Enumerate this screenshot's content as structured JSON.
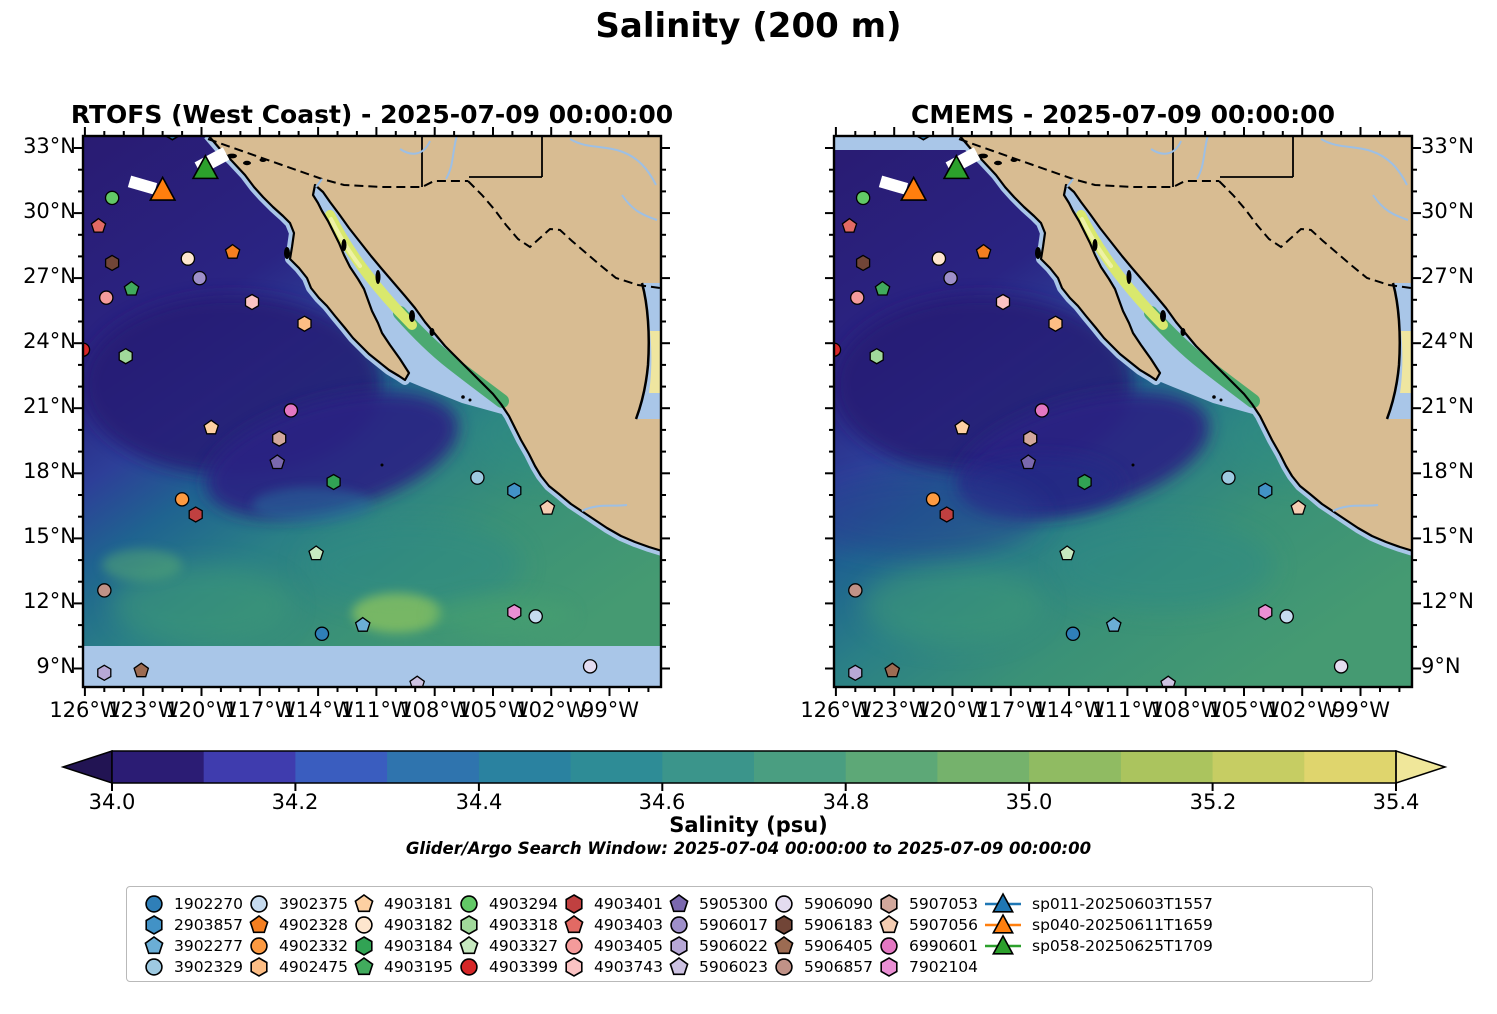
{
  "figure": {
    "title": "Salinity (200 m)",
    "subtitle": "Glider/Argo Search Window: 2025-07-04 00:00:00 to 2025-07-09 00:00:00"
  },
  "maps": [
    {
      "id": "rtofs",
      "title": "RTOFS (West Coast) - 2025-07-09 00:00:00",
      "lat_label_side": "left",
      "no_data_band": "bottom"
    },
    {
      "id": "cmems",
      "title": "CMEMS - 2025-07-09 00:00:00",
      "lat_label_side": "right",
      "no_data_band": "top"
    }
  ],
  "axes": {
    "bounds": {
      "lat_min": 8.1,
      "lat_max": 33.6,
      "lon_min": -126.15,
      "lon_max": -96.3
    },
    "lat_ticks": [
      {
        "label": "33°N",
        "lat": 33
      },
      {
        "label": "30°N",
        "lat": 30
      },
      {
        "label": "27°N",
        "lat": 27
      },
      {
        "label": "24°N",
        "lat": 24
      },
      {
        "label": "21°N",
        "lat": 21
      },
      {
        "label": "18°N",
        "lat": 18
      },
      {
        "label": "15°N",
        "lat": 15
      },
      {
        "label": "12°N",
        "lat": 12
      },
      {
        "label": "9°N",
        "lat": 9
      }
    ],
    "lon_ticks": [
      {
        "label": "126°W",
        "lon": -126
      },
      {
        "label": "123°W",
        "lon": -123
      },
      {
        "label": "120°W",
        "lon": -120
      },
      {
        "label": "117°W",
        "lon": -117
      },
      {
        "label": "114°W",
        "lon": -114
      },
      {
        "label": "111°W",
        "lon": -111
      },
      {
        "label": "108°W",
        "lon": -108
      },
      {
        "label": "105°W",
        "lon": -105
      },
      {
        "label": "102°W",
        "lon": -102
      },
      {
        "label": "99°W",
        "lon": -99
      }
    ]
  },
  "colorbar": {
    "label": "Salinity (psu)",
    "vmin": 34.0,
    "vmax": 35.4,
    "tick_labels": [
      "34.0",
      "34.2",
      "34.4",
      "34.6",
      "34.8",
      "35.0",
      "35.2",
      "35.4"
    ],
    "segment_colors": [
      "#2b1c74",
      "#3f3cae",
      "#3a5dbf",
      "#2f74ae",
      "#2a82a0",
      "#2e8c96",
      "#3b958b",
      "#4a9e81",
      "#5da877",
      "#75b26c",
      "#90bb62",
      "#abc45e",
      "#c6cd63",
      "#dfd56d"
    ],
    "extend_low": "#221453",
    "extend_high": "#f0e79a"
  },
  "chart_data": {
    "type": "heatmap",
    "title": "Salinity (200 m)",
    "panels": [
      "RTOFS (West Coast) - 2025-07-09 00:00:00",
      "CMEMS - 2025-07-09 00:00:00"
    ],
    "variable": "Salinity (psu)",
    "value_range": [
      34.0,
      35.4
    ],
    "lat_range_deg_n": [
      8.1,
      33.6
    ],
    "lon_range_deg_w": [
      126.15,
      96.3
    ],
    "notes": "Two map panels of ocean salinity at 200 m; dark indigo (~34.0-34.2 psu) in the northwest open Pacific, teal-green (~34.6-34.8) toward the south and east, yellow-green high salinity (>35.2) in the Gulf of California and western Gulf of Mexico; Argo float and glider positions overlaid."
  },
  "floats": [
    {
      "id": "1902270",
      "shape": "circle",
      "color": "#2f7fb8",
      "lat": 10.6,
      "lon": -113.8
    },
    {
      "id": "2903857",
      "shape": "hexagon",
      "color": "#4292c6",
      "lat": 17.2,
      "lon": -103.9
    },
    {
      "id": "3902277",
      "shape": "pentagon",
      "color": "#6baed6",
      "lat": 11.0,
      "lon": -111.7
    },
    {
      "id": "3902329",
      "shape": "circle",
      "color": "#9ecae1",
      "lat": 17.8,
      "lon": -105.8
    },
    {
      "id": "3902375",
      "shape": "circle",
      "color": "#c6dbef",
      "lat": 11.4,
      "lon": -102.8
    },
    {
      "id": "4902328",
      "shape": "pentagon",
      "color": "#f57f20",
      "lat": 28.2,
      "lon": -118.4
    },
    {
      "id": "4902332",
      "shape": "circle",
      "color": "#fd9a41",
      "lat": 16.8,
      "lon": -121.0
    },
    {
      "id": "4902475",
      "shape": "hexagon",
      "color": "#fdbe85",
      "lat": 24.9,
      "lon": -114.7
    },
    {
      "id": "4903181",
      "shape": "pentagon",
      "color": "#fdd0a2",
      "lat": 20.1,
      "lon": -119.5
    },
    {
      "id": "4903182",
      "shape": "circle",
      "color": "#fee6ce",
      "lat": 27.9,
      "lon": -120.7
    },
    {
      "id": "4903184",
      "shape": "hexagon",
      "color": "#31a354",
      "lat": 17.6,
      "lon": -113.2
    },
    {
      "id": "4903195",
      "shape": "pentagon",
      "color": "#41ab5d",
      "lat": 26.5,
      "lon": -123.6
    },
    {
      "id": "4903294",
      "shape": "circle",
      "color": "#62c966",
      "lat": 30.7,
      "lon": -124.6
    },
    {
      "id": "4903318",
      "shape": "hexagon",
      "color": "#a1d99b",
      "lat": 23.4,
      "lon": -123.9
    },
    {
      "id": "4903327",
      "shape": "pentagon",
      "color": "#c7e9c0",
      "lat": 14.3,
      "lon": -114.1
    },
    {
      "id": "4903399",
      "shape": "circle",
      "color": "#d62728",
      "lat": 23.7,
      "lon": -126.1
    },
    {
      "id": "4903401",
      "shape": "hexagon",
      "color": "#c04040",
      "lat": 16.1,
      "lon": -120.3
    },
    {
      "id": "4903403",
      "shape": "pentagon",
      "color": "#e26a64",
      "lat": 29.4,
      "lon": -125.3
    },
    {
      "id": "4903405",
      "shape": "circle",
      "color": "#f49b9b",
      "lat": 26.1,
      "lon": -124.9
    },
    {
      "id": "4903743",
      "shape": "hexagon",
      "color": "#fbc3c3",
      "lat": 25.9,
      "lon": -117.4
    },
    {
      "id": "5905300",
      "shape": "pentagon",
      "color": "#7a68ae",
      "lat": 18.5,
      "lon": -116.1
    },
    {
      "id": "5906017",
      "shape": "circle",
      "color": "#9e8fc9",
      "lat": 27.0,
      "lon": -120.1
    },
    {
      "id": "5906022",
      "shape": "hexagon",
      "color": "#b7a8d6",
      "lat": 8.8,
      "lon": -125.0
    },
    {
      "id": "5906023",
      "shape": "pentagon",
      "color": "#cdc2e2",
      "lat": 8.3,
      "lon": -108.9
    },
    {
      "id": "5906090",
      "shape": "circle",
      "color": "#e4dcf0",
      "lat": 9.1,
      "lon": -100.0
    },
    {
      "id": "5906183",
      "shape": "hexagon",
      "color": "#714537",
      "lat": 27.7,
      "lon": -124.6
    },
    {
      "id": "5906405",
      "shape": "pentagon",
      "color": "#9c6b52",
      "lat": 8.9,
      "lon": -123.1
    },
    {
      "id": "5906857",
      "shape": "circle",
      "color": "#c09287",
      "lat": 12.6,
      "lon": -125.0
    },
    {
      "id": "5907053",
      "shape": "hexagon",
      "color": "#d2a89c",
      "lat": 19.6,
      "lon": -116.0
    },
    {
      "id": "5907056",
      "shape": "pentagon",
      "color": "#f5cdb2",
      "lat": 16.4,
      "lon": -102.2
    },
    {
      "id": "6990601",
      "shape": "circle",
      "color": "#e377c2",
      "lat": 20.9,
      "lon": -115.4
    },
    {
      "id": "7902104",
      "shape": "hexagon",
      "color": "#ea8fd4",
      "lat": 11.6,
      "lon": -103.9
    }
  ],
  "gliders": [
    {
      "id": "sp011-20250603T1557",
      "color": "#1f77b4",
      "on_map": false
    },
    {
      "id": "sp040-20250611T1659",
      "color": "#ff7f0e",
      "on_map": true,
      "lat": 31.0,
      "lon": -122.0
    },
    {
      "id": "sp058-20250625T1709",
      "color": "#2ca02c",
      "on_map": true,
      "lat": 32.0,
      "lon": -119.8
    }
  ],
  "unlabeled_edge_marker": {
    "shape": "hexagon",
    "color": "#2f7fb8",
    "lat": 33.75,
    "lon": -121.5
  },
  "palette": {
    "land": "#d8bc92",
    "shallow_water": "#a9c6e8",
    "river": "#9dbfe4",
    "gulf_high_salinity": "#d9e86d",
    "gom_high_salinity": "#efe6a0",
    "no_data_band": "#a9c6e8",
    "coastline": "#000000"
  }
}
